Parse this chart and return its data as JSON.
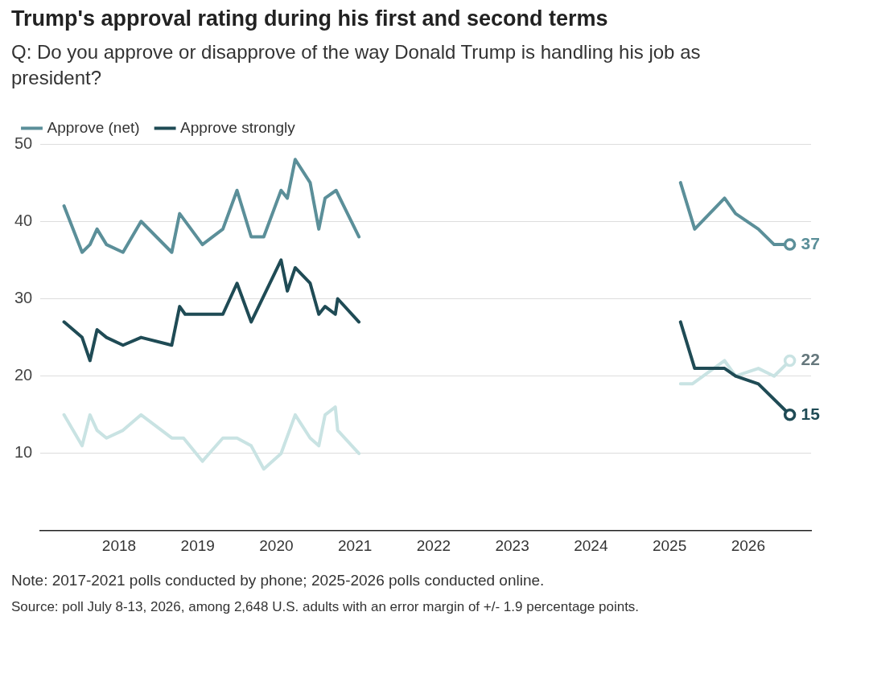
{
  "chart_data": {
    "type": "line",
    "title": "Trump's approval rating during his first and second terms",
    "subtitle": "Q: Do you approve or disapprove of the way Donald Trump is handling his job as president?",
    "xlim": [
      2017,
      2026.8
    ],
    "xticks": [
      2018,
      2019,
      2020,
      2021,
      2022,
      2023,
      2024,
      2025,
      2026
    ],
    "ylim": [
      0,
      50
    ],
    "yticks": [
      10,
      20,
      30,
      40,
      50
    ],
    "grid": "y",
    "legend": "top left",
    "series": [
      {
        "name": "Approve (net)",
        "color": "#5b8f99",
        "x": [
          2017.3,
          2017.53,
          2017.63,
          2017.72,
          2017.84,
          2018.05,
          2018.28,
          2018.67,
          2018.77,
          2019.06,
          2019.32,
          2019.5,
          2019.68,
          2019.84,
          2020.06,
          2020.14,
          2020.24,
          2020.43,
          2020.54,
          2020.62,
          2020.76,
          2021.05,
          2023,
          2025.14,
          2025.32,
          2025.7,
          2025.84,
          2026.13,
          2026.33,
          2026.53
        ],
        "values": [
          42,
          36,
          37,
          39,
          37,
          36,
          40,
          36,
          41,
          37,
          39,
          44,
          38,
          38,
          44,
          43,
          48,
          45,
          39,
          43,
          44,
          38,
          null,
          45,
          39,
          43,
          41,
          39,
          37,
          37
        ],
        "value_labels": [
          null,
          null,
          null,
          null,
          null,
          null,
          null,
          null,
          null,
          null,
          null,
          null,
          null,
          null,
          null,
          null,
          null,
          null,
          null,
          null,
          null,
          null,
          null,
          null,
          null,
          null,
          null,
          null,
          null,
          "37"
        ]
      },
      {
        "name": "Approve strongly",
        "color": "#1f4b55",
        "x": [
          2017.3,
          2017.53,
          2017.63,
          2017.72,
          2017.84,
          2018.05,
          2018.28,
          2018.67,
          2018.77,
          2018.84,
          2019.32,
          2019.5,
          2019.68,
          2020.06,
          2020.14,
          2020.24,
          2020.43,
          2020.54,
          2020.62,
          2020.75,
          2020.78,
          2021.05,
          2023,
          2025.14,
          2025.32,
          2025.7,
          2025.84,
          2026.13,
          2026.53
        ],
        "values": [
          27,
          25,
          22,
          26,
          25,
          24,
          25,
          24,
          29,
          28,
          28,
          32,
          27,
          35,
          31,
          34,
          32,
          28,
          29,
          28,
          30,
          27,
          null,
          27,
          21,
          21,
          20,
          19,
          15
        ],
        "value_labels": [
          null,
          null,
          null,
          null,
          null,
          null,
          null,
          null,
          null,
          null,
          null,
          null,
          null,
          null,
          null,
          null,
          null,
          null,
          null,
          null,
          null,
          null,
          null,
          null,
          null,
          null,
          null,
          null,
          "15"
        ]
      },
      {
        "color": "#c9e3e3",
        "x": [
          2017.3,
          2017.53,
          2017.63,
          2017.72,
          2017.84,
          2018.05,
          2018.28,
          2018.67,
          2018.82,
          2019.06,
          2019.32,
          2019.5,
          2019.68,
          2019.84,
          2020.06,
          2020.24,
          2020.43,
          2020.54,
          2020.62,
          2020.75,
          2020.78,
          2021.05,
          2023,
          2025.14,
          2025.29,
          2025.7,
          2025.84,
          2026.13,
          2026.33,
          2026.53
        ],
        "values": [
          15,
          11,
          15,
          13,
          12,
          13,
          15,
          12,
          12,
          9,
          12,
          12,
          11,
          8,
          10,
          15,
          12,
          11,
          15,
          16,
          13,
          10,
          null,
          19,
          19,
          22,
          20,
          21,
          20,
          22
        ],
        "value_labels": [
          null,
          null,
          null,
          null,
          null,
          null,
          null,
          null,
          null,
          null,
          null,
          null,
          null,
          null,
          null,
          null,
          null,
          null,
          null,
          null,
          null,
          null,
          null,
          null,
          null,
          null,
          null,
          null,
          null,
          "22"
        ]
      }
    ],
    "annotations": [
      "Note: 2017-2021 polls conducted by phone; 2025-2026 polls conducted online.",
      "Source: poll July 8-13, 2026, among 2,648 U.S. adults with an error margin of +/- 1.9 percentage points."
    ]
  }
}
